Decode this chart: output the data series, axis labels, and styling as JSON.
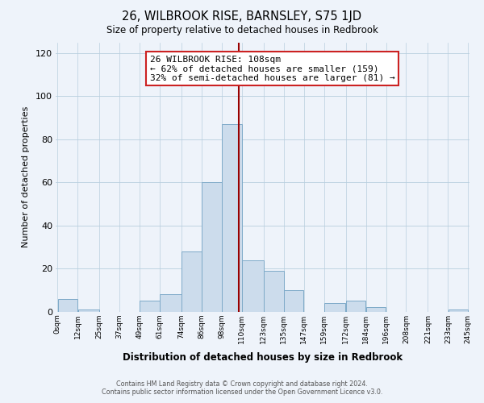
{
  "title": "26, WILBROOK RISE, BARNSLEY, S75 1JD",
  "subtitle": "Size of property relative to detached houses in Redbrook",
  "xlabel": "Distribution of detached houses by size in Redbrook",
  "ylabel": "Number of detached properties",
  "bar_color": "#ccdcec",
  "bar_edge_color": "#7eaac8",
  "background_color": "#eef3fa",
  "grid_color": "#b8cede",
  "tick_labels": [
    "0sqm",
    "12sqm",
    "25sqm",
    "37sqm",
    "49sqm",
    "61sqm",
    "74sqm",
    "86sqm",
    "98sqm",
    "110sqm",
    "123sqm",
    "135sqm",
    "147sqm",
    "159sqm",
    "172sqm",
    "184sqm",
    "196sqm",
    "208sqm",
    "221sqm",
    "233sqm",
    "245sqm"
  ],
  "bin_edges": [
    0,
    12,
    25,
    37,
    49,
    61,
    74,
    86,
    98,
    110,
    123,
    135,
    147,
    159,
    172,
    184,
    196,
    208,
    221,
    233,
    245
  ],
  "bar_heights": [
    6,
    1,
    0,
    0,
    5,
    8,
    28,
    60,
    87,
    24,
    19,
    10,
    0,
    4,
    5,
    2,
    0,
    0,
    0,
    1
  ],
  "ylim": [
    0,
    125
  ],
  "yticks": [
    0,
    20,
    40,
    60,
    80,
    100,
    120
  ],
  "property_size": 108,
  "property_line_color": "#990000",
  "annotation_line1": "26 WILBROOK RISE: 108sqm",
  "annotation_line2": "← 62% of detached houses are smaller (159)",
  "annotation_line3": "32% of semi-detached houses are larger (81) →",
  "annotation_box_color": "#ffffff",
  "annotation_box_edge": "#cc2222",
  "footer_line1": "Contains HM Land Registry data © Crown copyright and database right 2024.",
  "footer_line2": "Contains public sector information licensed under the Open Government Licence v3.0."
}
